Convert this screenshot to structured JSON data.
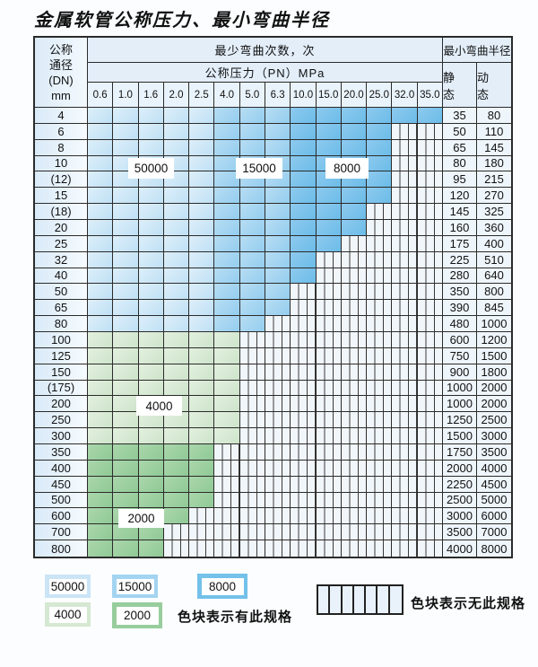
{
  "title": "金属软管公称压力、最小弯曲半径",
  "table": {
    "header": {
      "dn_label_lines": [
        "公称",
        "通径",
        "(DN)",
        "mm"
      ],
      "bend_cycles_label": "最少弯曲次数，次",
      "pressure_label": "公称压力（PN）MPa",
      "pressure_columns": [
        "0.6",
        "1.0",
        "1.6",
        "2.0",
        "2.5",
        "4.0",
        "5.0",
        "6.3",
        "10.0",
        "15.0",
        "20.0",
        "25.0",
        "32.0",
        "35.0"
      ],
      "bend_radius_label": "最小弯曲半径",
      "static_label": "静 态",
      "dynamic_label": "动 态"
    },
    "blue_shade_split": [
      5,
      8
    ],
    "rows": [
      {
        "dn": "4",
        "count": 14,
        "palette": "blue",
        "static": "35",
        "dynamic": "80"
      },
      {
        "dn": "6",
        "count": 12,
        "palette": "blue",
        "static": "50",
        "dynamic": "110"
      },
      {
        "dn": "8",
        "count": 12,
        "palette": "blue",
        "static": "65",
        "dynamic": "145"
      },
      {
        "dn": "10",
        "count": 12,
        "palette": "blue",
        "static": "80",
        "dynamic": "180"
      },
      {
        "dn": "(12)",
        "count": 12,
        "palette": "blue",
        "static": "95",
        "dynamic": "215"
      },
      {
        "dn": "15",
        "count": 12,
        "palette": "blue",
        "static": "120",
        "dynamic": "270"
      },
      {
        "dn": "(18)",
        "count": 11,
        "palette": "blue",
        "static": "145",
        "dynamic": "325"
      },
      {
        "dn": "20",
        "count": 11,
        "palette": "blue",
        "static": "160",
        "dynamic": "360"
      },
      {
        "dn": "25",
        "count": 10,
        "palette": "blue",
        "static": "175",
        "dynamic": "400"
      },
      {
        "dn": "32",
        "count": 9,
        "palette": "blue",
        "static": "225",
        "dynamic": "510"
      },
      {
        "dn": "40",
        "count": 9,
        "palette": "blue",
        "static": "280",
        "dynamic": "640"
      },
      {
        "dn": "50",
        "count": 8,
        "palette": "blue",
        "static": "350",
        "dynamic": "800"
      },
      {
        "dn": "65",
        "count": 8,
        "palette": "blue",
        "static": "390",
        "dynamic": "845"
      },
      {
        "dn": "80",
        "count": 7,
        "palette": "blue",
        "static": "480",
        "dynamic": "1000"
      },
      {
        "dn": "100",
        "count": 6,
        "palette": "green_4000",
        "static": "600",
        "dynamic": "1200"
      },
      {
        "dn": "125",
        "count": 6,
        "palette": "green_4000",
        "static": "750",
        "dynamic": "1500"
      },
      {
        "dn": "150",
        "count": 6,
        "palette": "green_4000",
        "static": "900",
        "dynamic": "1800"
      },
      {
        "dn": "(175)",
        "count": 6,
        "palette": "green_4000",
        "static": "1000",
        "dynamic": "2000"
      },
      {
        "dn": "200",
        "count": 6,
        "palette": "green_4000",
        "static": "1000",
        "dynamic": "2000"
      },
      {
        "dn": "250",
        "count": 6,
        "palette": "green_4000",
        "static": "1250",
        "dynamic": "2500"
      },
      {
        "dn": "300",
        "count": 6,
        "palette": "green_4000",
        "static": "1500",
        "dynamic": "3000"
      },
      {
        "dn": "350",
        "count": 5,
        "palette": "green_2000",
        "static": "1750",
        "dynamic": "3500"
      },
      {
        "dn": "400",
        "count": 5,
        "palette": "green_2000",
        "static": "2000",
        "dynamic": "4000"
      },
      {
        "dn": "450",
        "count": 5,
        "palette": "green_2000",
        "static": "2250",
        "dynamic": "4500"
      },
      {
        "dn": "500",
        "count": 5,
        "palette": "green_2000",
        "static": "2500",
        "dynamic": "5000"
      },
      {
        "dn": "600",
        "count": 4,
        "palette": "green_2000",
        "static": "3000",
        "dynamic": "6000"
      },
      {
        "dn": "700",
        "count": 3,
        "palette": "green_2000",
        "static": "3500",
        "dynamic": "7000"
      },
      {
        "dn": "800",
        "count": 3,
        "palette": "green_2000",
        "static": "4000",
        "dynamic": "8000"
      }
    ]
  },
  "overlay_labels": [
    {
      "key": "label-50000",
      "text": "50000"
    },
    {
      "key": "label-15000",
      "text": "15000"
    },
    {
      "key": "label-8000",
      "text": "8000"
    },
    {
      "key": "label-4000",
      "text": "4000"
    },
    {
      "key": "label-2000",
      "text": "2000"
    }
  ],
  "legend": {
    "swatches": [
      {
        "key": "swatch-50000",
        "label": "50000"
      },
      {
        "key": "swatch-15000",
        "label": "15000"
      },
      {
        "key": "swatch-8000",
        "label": "8000"
      },
      {
        "key": "swatch-4000",
        "label": "4000"
      },
      {
        "key": "swatch-2000",
        "label": "2000"
      }
    ],
    "available_text": "色块表示有此规格",
    "none_text": "色块表示无此规格"
  },
  "colors": {
    "blue_light": "#cbe4f6",
    "blue_mid": "#a3d4f1",
    "blue_dark": "#74c1ea",
    "green_light": "#d5e8d2",
    "green_dark": "#98cd9d",
    "hatch_fill": "#f1f6fb",
    "border": "#2b2b2b"
  },
  "chart_data": {
    "type": "table",
    "title": "金属软管公称压力、最小弯曲半径",
    "pressure_columns_mpa": [
      0.6,
      1.0,
      1.6,
      2.0,
      2.5,
      4.0,
      5.0,
      6.3,
      10.0,
      15.0,
      20.0,
      25.0,
      32.0,
      35.0
    ],
    "bend_cycles_bands": [
      {
        "cycles": 50000,
        "pressures_mpa": "0.6–2.5",
        "dn_range": "4–80",
        "color": "light blue"
      },
      {
        "cycles": 15000,
        "pressures_mpa": "4.0–6.3",
        "dn_range": "4–80",
        "color": "medium blue"
      },
      {
        "cycles": 8000,
        "pressures_mpa": "10.0–35.0",
        "dn_range": "4–40",
        "color": "dark blue"
      },
      {
        "cycles": 4000,
        "pressures_mpa": "0.6–4.0",
        "dn_range": "100–300",
        "color": "light green"
      },
      {
        "cycles": 2000,
        "pressures_mpa": "0.6–2.5",
        "dn_range": "350–800",
        "color": "dark green"
      }
    ],
    "rows": [
      {
        "dn": "4",
        "max_pn_mpa": 35.0,
        "static_radius": 35,
        "dynamic_radius": 80
      },
      {
        "dn": "6",
        "max_pn_mpa": 25.0,
        "static_radius": 50,
        "dynamic_radius": 110
      },
      {
        "dn": "8",
        "max_pn_mpa": 25.0,
        "static_radius": 65,
        "dynamic_radius": 145
      },
      {
        "dn": "10",
        "max_pn_mpa": 25.0,
        "static_radius": 80,
        "dynamic_radius": 180
      },
      {
        "dn": "(12)",
        "max_pn_mpa": 25.0,
        "static_radius": 95,
        "dynamic_radius": 215
      },
      {
        "dn": "15",
        "max_pn_mpa": 25.0,
        "static_radius": 120,
        "dynamic_radius": 270
      },
      {
        "dn": "(18)",
        "max_pn_mpa": 20.0,
        "static_radius": 145,
        "dynamic_radius": 325
      },
      {
        "dn": "20",
        "max_pn_mpa": 20.0,
        "static_radius": 160,
        "dynamic_radius": 360
      },
      {
        "dn": "25",
        "max_pn_mpa": 15.0,
        "static_radius": 175,
        "dynamic_radius": 400
      },
      {
        "dn": "32",
        "max_pn_mpa": 10.0,
        "static_radius": 225,
        "dynamic_radius": 510
      },
      {
        "dn": "40",
        "max_pn_mpa": 10.0,
        "static_radius": 280,
        "dynamic_radius": 640
      },
      {
        "dn": "50",
        "max_pn_mpa": 6.3,
        "static_radius": 350,
        "dynamic_radius": 800
      },
      {
        "dn": "65",
        "max_pn_mpa": 6.3,
        "static_radius": 390,
        "dynamic_radius": 845
      },
      {
        "dn": "80",
        "max_pn_mpa": 5.0,
        "static_radius": 480,
        "dynamic_radius": 1000
      },
      {
        "dn": "100",
        "max_pn_mpa": 4.0,
        "static_radius": 600,
        "dynamic_radius": 1200
      },
      {
        "dn": "125",
        "max_pn_mpa": 4.0,
        "static_radius": 750,
        "dynamic_radius": 1500
      },
      {
        "dn": "150",
        "max_pn_mpa": 4.0,
        "static_radius": 900,
        "dynamic_radius": 1800
      },
      {
        "dn": "(175)",
        "max_pn_mpa": 4.0,
        "static_radius": 1000,
        "dynamic_radius": 2000
      },
      {
        "dn": "200",
        "max_pn_mpa": 4.0,
        "static_radius": 1000,
        "dynamic_radius": 2000
      },
      {
        "dn": "250",
        "max_pn_mpa": 4.0,
        "static_radius": 1250,
        "dynamic_radius": 2500
      },
      {
        "dn": "300",
        "max_pn_mpa": 4.0,
        "static_radius": 1500,
        "dynamic_radius": 3000
      },
      {
        "dn": "350",
        "max_pn_mpa": 2.5,
        "static_radius": 1750,
        "dynamic_radius": 3500
      },
      {
        "dn": "400",
        "max_pn_mpa": 2.5,
        "static_radius": 2000,
        "dynamic_radius": 4000
      },
      {
        "dn": "450",
        "max_pn_mpa": 2.5,
        "static_radius": 2250,
        "dynamic_radius": 4500
      },
      {
        "dn": "500",
        "max_pn_mpa": 2.5,
        "static_radius": 2500,
        "dynamic_radius": 5000
      },
      {
        "dn": "600",
        "max_pn_mpa": 2.0,
        "static_radius": 3000,
        "dynamic_radius": 6000
      },
      {
        "dn": "700",
        "max_pn_mpa": 1.6,
        "static_radius": 3500,
        "dynamic_radius": 7000
      },
      {
        "dn": "800",
        "max_pn_mpa": 1.6,
        "static_radius": 4000,
        "dynamic_radius": 8000
      }
    ],
    "legend": [
      "50000",
      "15000",
      "8000",
      "4000",
      "2000",
      "色块表示有此规格",
      "色块表示无此规格"
    ]
  }
}
